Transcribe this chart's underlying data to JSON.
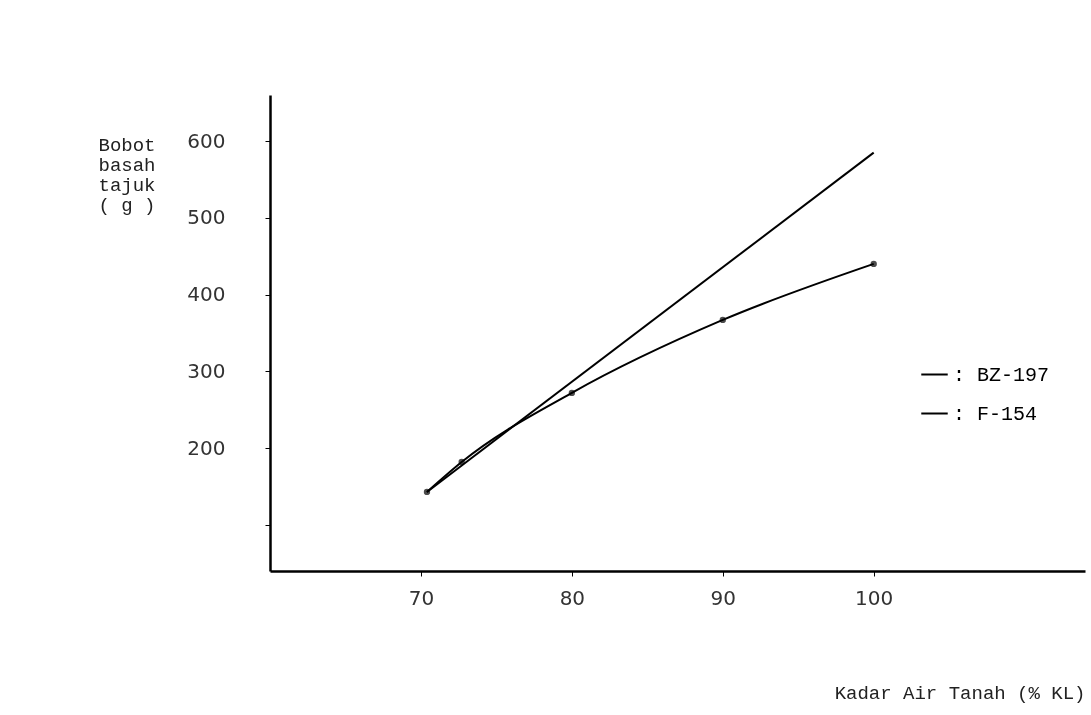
{
  "chart_data": {
    "type": "line",
    "xlabel": "Kadar Air Tanah (% KL)",
    "ylabel": "Bobot basah tajuk ( g )",
    "xlim": [
      60,
      114
    ],
    "xticks": [
      70,
      80,
      90,
      100
    ],
    "ylim": [
      40,
      660
    ],
    "yticks": [
      {
        "value": 100,
        "label": null
      },
      200,
      300,
      400,
      500,
      600
    ],
    "grid": false,
    "legend": "right",
    "line_style": "solid",
    "series": [
      {
        "name": ": BZ-197",
        "color": "#000000",
        "marker": "circle",
        "x": [
          70.4,
          72.7,
          80,
          90,
          100
        ],
        "values": [
          143,
          182,
          272,
          367,
          440
        ]
      },
      {
        "name": ": F-154",
        "color": "#000000",
        "marker": "none",
        "x": [
          70.4,
          100
        ],
        "values": [
          143,
          585
        ]
      }
    ]
  }
}
